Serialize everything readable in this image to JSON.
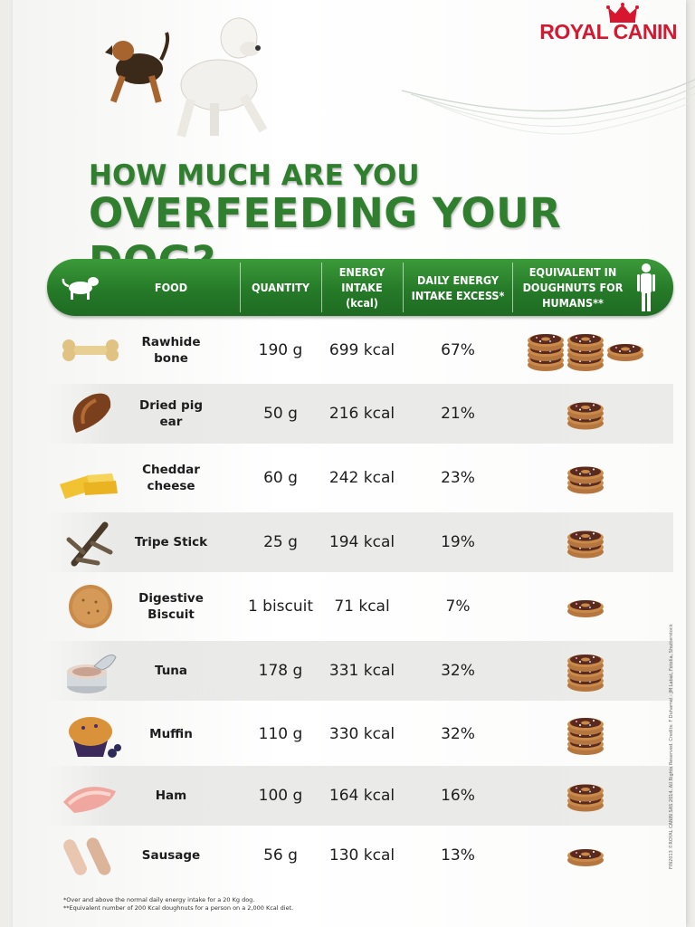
{
  "brand": {
    "name": "ROYAL CANIN",
    "logo_icon": "crown-icon",
    "color": "#d7162f"
  },
  "headline": {
    "line1": "HOW MUCH ARE YOU",
    "line2": "OVERFEEDING YOUR DOG?",
    "color": "#2f7f2e"
  },
  "chart_data": {
    "type": "table",
    "columns": [
      "FOOD",
      "QUANTITY",
      "ENERGY INTAKE (kcal)",
      "DAILY ENERGY INTAKE EXCESS*",
      "EQUIVALENT IN DOUGHNUTS FOR HUMANS**"
    ],
    "rows": [
      {
        "food": "Rawhide bone",
        "quantity": "190 g",
        "energy": "699 kcal",
        "excess": "67%",
        "doughnuts": 7,
        "image": "rawhide-bone-icon"
      },
      {
        "food": "Dried pig ear",
        "quantity": "50 g",
        "energy": "216 kcal",
        "excess": "21%",
        "doughnuts": 2,
        "image": "pig-ear-icon"
      },
      {
        "food": "Cheddar cheese",
        "quantity": "60 g",
        "energy": "242 kcal",
        "excess": "23%",
        "doughnuts": 2,
        "image": "cheese-icon"
      },
      {
        "food": "Tripe Stick",
        "quantity": "25 g",
        "energy": "194 kcal",
        "excess": "19%",
        "doughnuts": 2,
        "image": "tripe-stick-icon"
      },
      {
        "food": "Digestive Biscuit",
        "quantity": "1 biscuit",
        "energy": "71 kcal",
        "excess": "7%",
        "doughnuts": 1,
        "image": "biscuit-icon"
      },
      {
        "food": "Tuna",
        "quantity": "178 g",
        "energy": "331 kcal",
        "excess": "32%",
        "doughnuts": 3,
        "image": "tuna-can-icon"
      },
      {
        "food": "Muffin",
        "quantity": "110 g",
        "energy": "330 kcal",
        "excess": "32%",
        "doughnuts": 3,
        "image": "muffin-icon"
      },
      {
        "food": "Ham",
        "quantity": "100 g",
        "energy": "164 kcal",
        "excess": "16%",
        "doughnuts": 2,
        "image": "ham-icon"
      },
      {
        "food": "Sausage",
        "quantity": "56 g",
        "energy": "130 kcal",
        "excess": "13%",
        "doughnuts": 1,
        "image": "sausage-icon"
      }
    ]
  },
  "footnotes": {
    "note1": "*Over and above the normal daily energy intake for a 20 Kg dog.",
    "note2": "**Equivalent number of 200 Kcal doughnuts for a person on a 2,000 Kcal diet."
  },
  "credits": "FIN2013 ©ROYAL CANIN SAS 2014. All Rights Reserved. Credits: F Duhamel - JM Labat, Fotolia, Shutterstock",
  "colors": {
    "header_green": "#2a8a2c",
    "doughnut_icing": "#5a2a1e",
    "doughnut_dough": "#c98a4a"
  },
  "header_icons": {
    "dog": "dog-icon",
    "human": "human-silhouette-icon"
  }
}
